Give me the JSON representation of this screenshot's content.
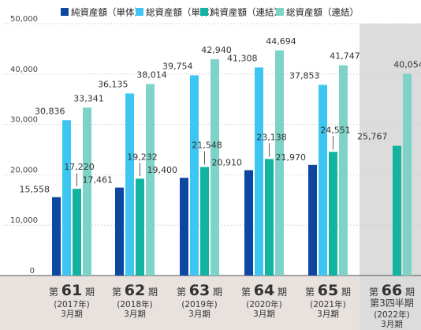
{
  "chart_data": {
    "type": "bar",
    "ylim": [
      0,
      50000
    ],
    "yticks": [
      "0",
      "10,000",
      "20,000",
      "30,000",
      "40,000",
      "50,000"
    ],
    "grid": true,
    "legend_position": "top",
    "series": [
      {
        "name": "純資産額（単体）",
        "color": "#0d47a1",
        "values": [
          15558,
          17461,
          19400,
          20910,
          21970,
          null
        ]
      },
      {
        "name": "総資産額（単体）",
        "color": "#3ec6f2",
        "values": [
          30836,
          36135,
          39754,
          41308,
          37853,
          null
        ]
      },
      {
        "name": "純資産額（連結）",
        "color": "#12b3a0",
        "values": [
          17220,
          19232,
          21548,
          23138,
          24551,
          25767
        ]
      },
      {
        "name": "総資産額（連結）",
        "color": "#7ed3c8",
        "values": [
          33341,
          38014,
          42940,
          44694,
          41747,
          40054
        ]
      }
    ],
    "data_labels": [
      [
        "15,558",
        "30,836",
        "17,220",
        "33,341"
      ],
      [
        "17,461",
        "36,135",
        "19,232",
        "38,014"
      ],
      [
        "19,400",
        "39,754",
        "21,548",
        "42,940"
      ],
      [
        "20,910",
        "41,308",
        "23,138",
        "44,694"
      ],
      [
        "21,970",
        "37,853",
        "24,551",
        "41,747"
      ],
      [
        "",
        "",
        "25,767",
        "40,054"
      ]
    ],
    "categories": [
      {
        "prefix": "第",
        "num": "61",
        "suffix": "期",
        "sub": "",
        "year": "2017年",
        "month": "3月期"
      },
      {
        "prefix": "第",
        "num": "62",
        "suffix": "期",
        "sub": "",
        "year": "2018年",
        "month": "3月期"
      },
      {
        "prefix": "第",
        "num": "63",
        "suffix": "期",
        "sub": "",
        "year": "2019年",
        "month": "3月期"
      },
      {
        "prefix": "第",
        "num": "64",
        "suffix": "期",
        "sub": "",
        "year": "2020年",
        "month": "3月期"
      },
      {
        "prefix": "第",
        "num": "65",
        "suffix": "期",
        "sub": "",
        "year": "2021年",
        "month": "3月期"
      },
      {
        "prefix": "第",
        "num": "66",
        "suffix": "期",
        "sub": "第3四半期",
        "year": "2022年",
        "month": "3月期"
      }
    ],
    "highlight_category_index": 5,
    "colors": {
      "grid": "#cfcfcf",
      "highlight_bg": "#dcdcdc",
      "footer_bg": "#e8e2df",
      "axis": "#555555"
    }
  }
}
